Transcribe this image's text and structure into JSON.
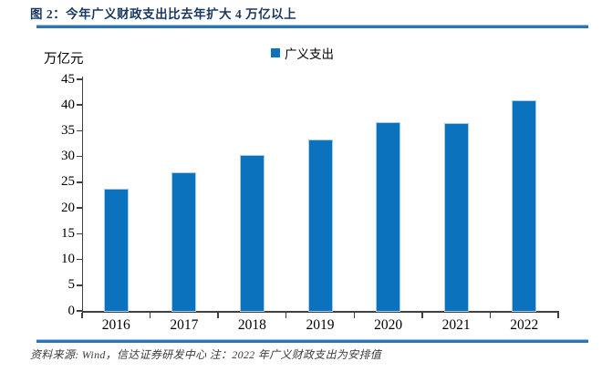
{
  "header": {
    "title": "图 2：今年广义财政支出比去年扩大 4 万亿以上"
  },
  "chart_data": {
    "type": "bar",
    "title": "图 2：今年广义财政支出比去年扩大 4 万亿以上",
    "unit_label": "万亿元",
    "series_name": "广义支出",
    "categories": [
      "2016",
      "2017",
      "2018",
      "2019",
      "2020",
      "2021",
      "2022"
    ],
    "values": [
      23.5,
      26.7,
      30.2,
      33.1,
      36.5,
      36.3,
      40.7
    ],
    "ylabel": "万亿元",
    "xlabel": "",
    "ylim": [
      0,
      45
    ],
    "yticks": [
      0,
      5,
      10,
      15,
      20,
      25,
      30,
      35,
      40,
      45
    ],
    "grid": false,
    "legend_position": "top-center",
    "bar_color": "#0B72BE"
  },
  "footer": {
    "source": "资料来源: Wind，信达证券研发中心  注：2022 年广义财政支出为安排值"
  },
  "colors": {
    "bar_blue": "#0B72BE",
    "title_navy": "#17375E",
    "rule_blue": "#2E74B5",
    "axis_gray": "#404040"
  }
}
